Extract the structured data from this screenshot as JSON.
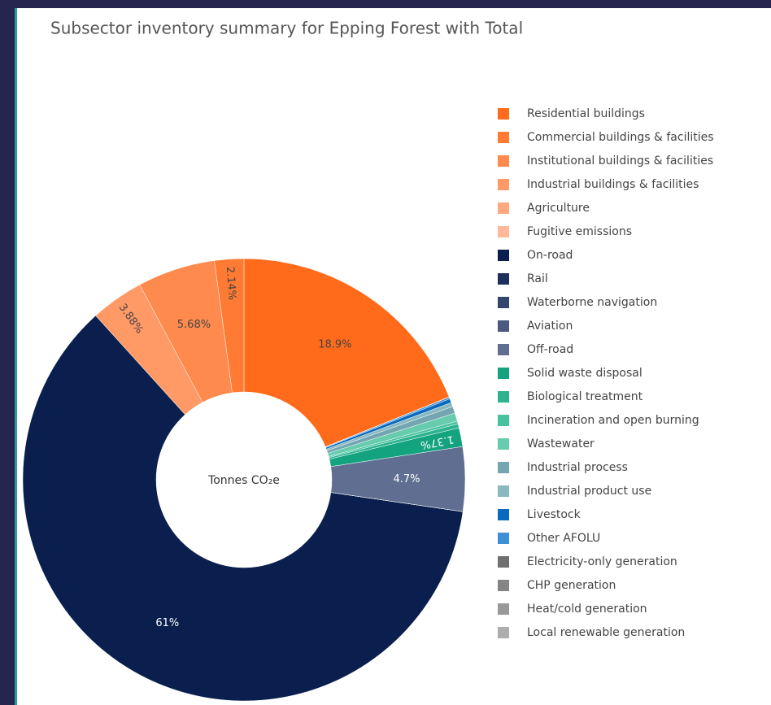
{
  "chart_data": {
    "type": "pie",
    "title": "Subsector inventory summary for Epping Forest with Total",
    "center_label": "Tonnes CO₂e",
    "categories": [
      "Residential buildings",
      "Commercial buildings & facilities",
      "Institutional buildings & facilities",
      "Industrial buildings & facilities",
      "Agriculture",
      "Fugitive emissions",
      "On-road",
      "Rail",
      "Waterborne navigation",
      "Aviation",
      "Off-road",
      "Solid waste disposal",
      "Biological treatment",
      "Incineration and open burning",
      "Wastewater",
      "Industrial process",
      "Industrial product use",
      "Livestock",
      "Other AFOLU",
      "Electricity-only generation",
      "CHP generation",
      "Heat/cold generation",
      "Local renewable generation"
    ],
    "values": [
      18.9,
      2.14,
      5.68,
      3.88,
      0,
      0,
      61,
      0,
      0,
      0,
      4.7,
      1.37,
      0.3,
      0.2,
      0.6,
      0.5,
      0.3,
      0.3,
      0.13,
      0,
      0,
      0,
      0
    ],
    "value_labels": [
      "18.9%",
      "2.14%",
      "5.68%",
      "3.88%",
      null,
      null,
      "61%",
      null,
      null,
      null,
      "4.7%",
      "1.37%",
      null,
      null,
      null,
      null,
      null,
      null,
      null,
      null,
      null,
      null,
      null
    ],
    "colors": [
      "#ff6b1a",
      "#ff7a33",
      "#ff8a4d",
      "#ff9966",
      "#ffa87f",
      "#ffb899",
      "#0a1f4d",
      "#1e2f5c",
      "#34456e",
      "#4a5a80",
      "#5f6e91",
      "#14a37f",
      "#2db38f",
      "#47c29f",
      "#66ccad",
      "#73a6b0",
      "#8ab8c0",
      "#0a6abf",
      "#3d8fd6",
      "#707070",
      "#858585",
      "#999999",
      "#adadad"
    ],
    "legend": "right"
  }
}
